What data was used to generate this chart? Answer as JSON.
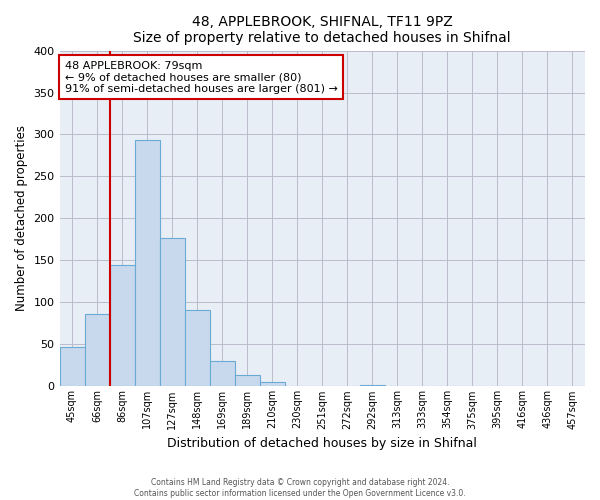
{
  "title1": "48, APPLEBROOK, SHIFNAL, TF11 9PZ",
  "title2": "Size of property relative to detached houses in Shifnal",
  "xlabel": "Distribution of detached houses by size in Shifnal",
  "ylabel": "Number of detached properties",
  "bar_labels": [
    "45sqm",
    "66sqm",
    "86sqm",
    "107sqm",
    "127sqm",
    "148sqm",
    "169sqm",
    "189sqm",
    "210sqm",
    "230sqm",
    "251sqm",
    "272sqm",
    "292sqm",
    "313sqm",
    "333sqm",
    "354sqm",
    "375sqm",
    "395sqm",
    "416sqm",
    "436sqm",
    "457sqm"
  ],
  "bar_heights": [
    47,
    86,
    145,
    293,
    177,
    91,
    30,
    14,
    5,
    0,
    0,
    0,
    2,
    0,
    0,
    0,
    1,
    0,
    0,
    0,
    1
  ],
  "bar_color": "#c8d9ee",
  "bar_edge_color": "#6aaad4",
  "plot_bg_color": "#e8eef5",
  "ylim": [
    0,
    400
  ],
  "yticks": [
    0,
    50,
    100,
    150,
    200,
    250,
    300,
    350,
    400
  ],
  "red_line_x": 1.5,
  "annotation_title": "48 APPLEBROOK: 79sqm",
  "annotation_line1": "← 9% of detached houses are smaller (80)",
  "annotation_line2": "91% of semi-detached houses are larger (801) →",
  "footer1": "Contains HM Land Registry data © Crown copyright and database right 2024.",
  "footer2": "Contains public sector information licensed under the Open Government Licence v3.0."
}
